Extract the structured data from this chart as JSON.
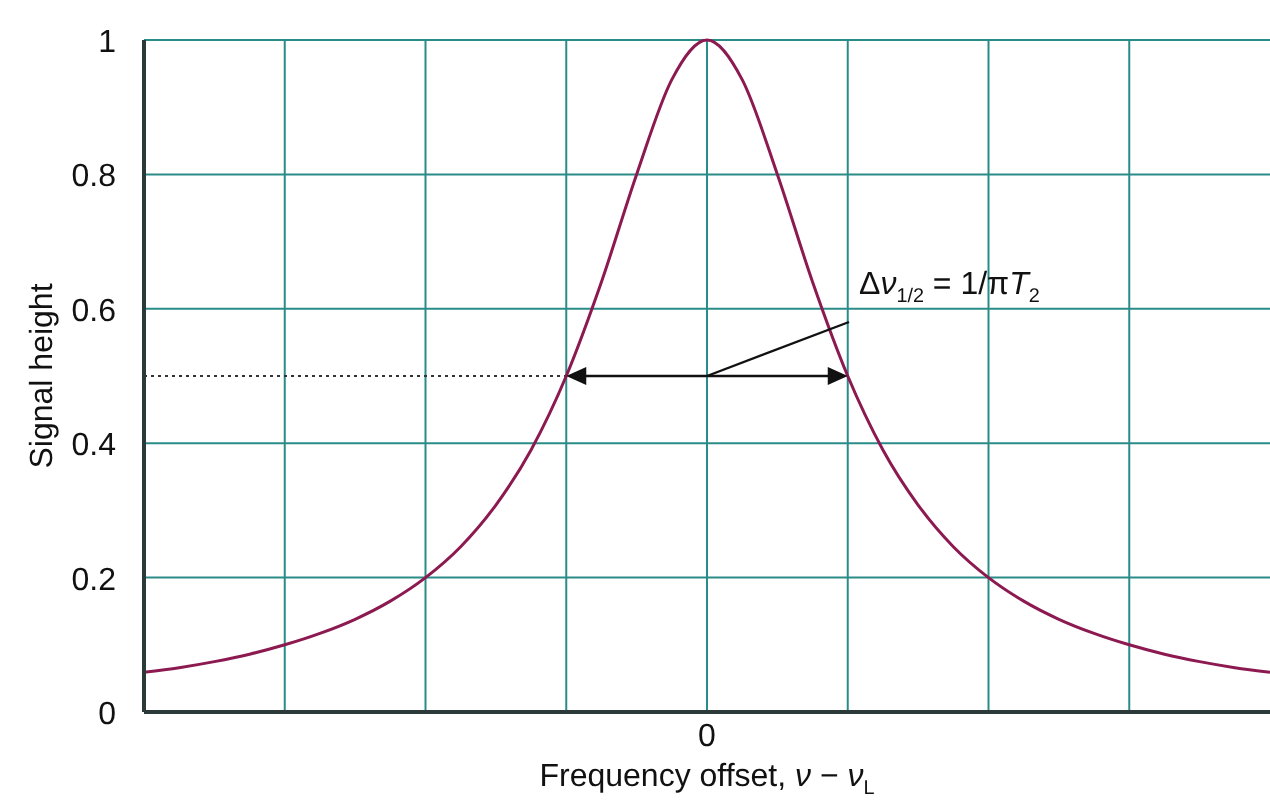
{
  "chart_data": {
    "type": "line",
    "xlabel": "Frequency offset, ν − ν$_{L}$",
    "ylabel": "Signal height",
    "categories": [
      null,
      null,
      null,
      null,
      null,
      null,
      null,
      null,
      null,
      null,
      null,
      null,
      null,
      null,
      null,
      null,
      "0",
      null,
      null,
      null,
      null,
      null,
      null,
      null,
      null,
      null,
      null,
      null,
      null,
      null,
      null,
      null,
      null
    ],
    "series": [
      {
        "color": "#8c1a50",
        "values": [
          0.059,
          0.066,
          0.075,
          0.086,
          0.1,
          0.117,
          0.138,
          0.165,
          0.2,
          0.246,
          0.308,
          0.39,
          0.5,
          0.64,
          0.8,
          0.941,
          1,
          0.941,
          0.8,
          0.64,
          0.5,
          0.39,
          0.308,
          0.246,
          0.2,
          0.165,
          0.138,
          0.117,
          0.1,
          0.086,
          0.075,
          0.066,
          0.059
        ]
      }
    ],
    "ylim": [
      0,
      1
    ],
    "yticks": [
      0,
      0.2,
      0.4,
      0.6,
      0.8,
      1
    ],
    "grid": true,
    "marker": "none",
    "line_style": "solid",
    "ref_lines": [
      {
        "axis": "y",
        "value": 0.5,
        "line_style": "dotted",
        "color": "#333333"
      }
    ],
    "annotations": [
      "Δν$_{1/2}$ = 1/πT$_{2}$"
    ]
  }
}
